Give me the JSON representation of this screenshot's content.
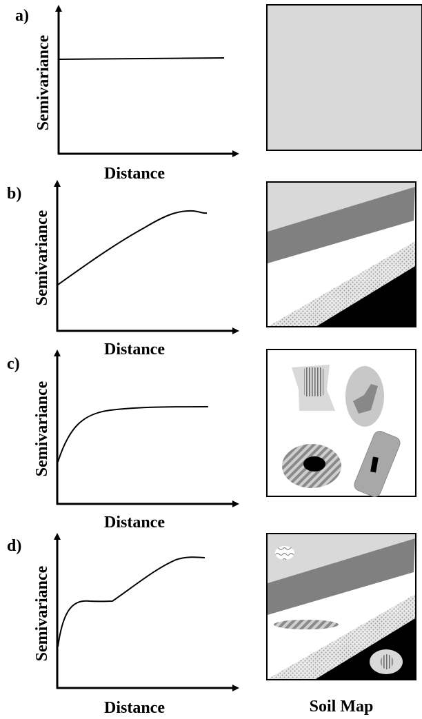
{
  "panels": [
    {
      "id": "a",
      "panel_label": "a)",
      "y_label": "Semivariance",
      "x_label": "Distance",
      "curve": "pure-nugget"
    },
    {
      "id": "b",
      "panel_label": "b)",
      "y_label": "Semivariance",
      "x_label": "Distance",
      "curve": "linear-rise-to-sill"
    },
    {
      "id": "c",
      "panel_label": "c)",
      "y_label": "Semivariance",
      "x_label": "Distance",
      "curve": "short-range-rise-to-sill"
    },
    {
      "id": "d",
      "panel_label": "d)",
      "y_label": "Semivariance",
      "x_label": "Distance",
      "curve": "nested-two-structure"
    }
  ],
  "map_caption": "Soil Map",
  "colors": {
    "light_gray": "#d9d9d9",
    "mid_gray": "#808080",
    "oval_gray": "#c8c8c8",
    "black": "#000000",
    "white": "#ffffff"
  }
}
